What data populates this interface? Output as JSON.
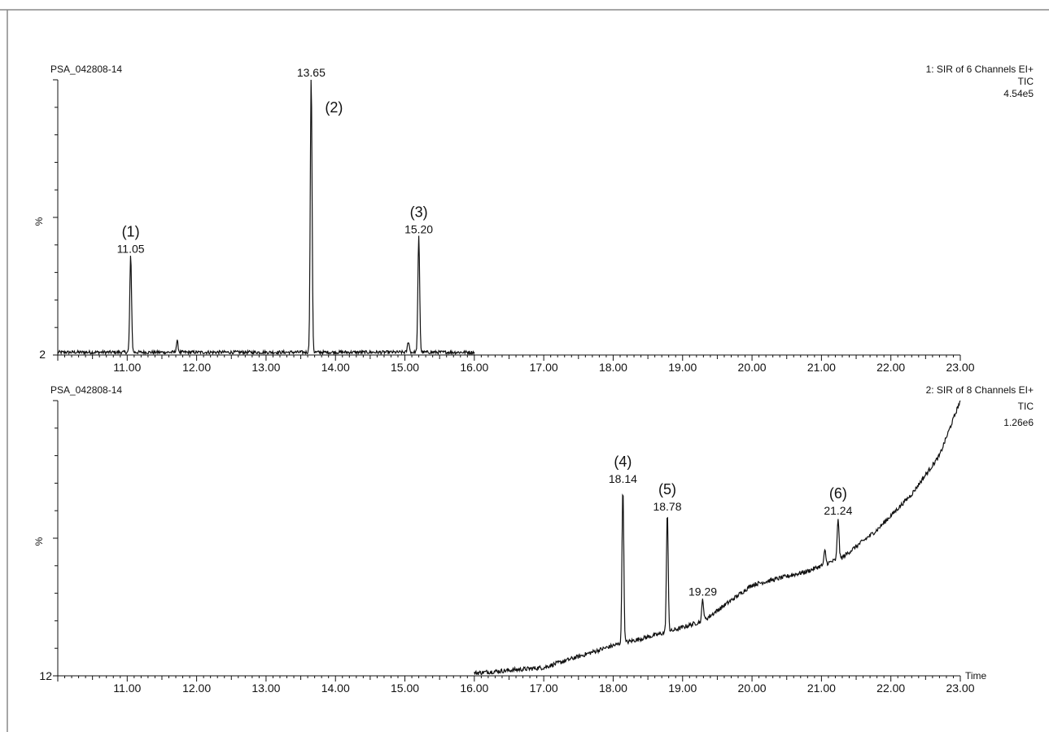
{
  "chart_data": [
    {
      "type": "line",
      "sample_id": "PSA_042808-14",
      "info": [
        "1: SIR of 6 Channels EI+",
        "TIC",
        "4.54e5"
      ],
      "ylabel": "%",
      "ymin_label": "2",
      "xlim": [
        10.0,
        23.0
      ],
      "ylim": [
        0,
        100
      ],
      "x_ticks": [
        "11.00",
        "12.00",
        "13.00",
        "14.00",
        "15.00",
        "16.00",
        "17.00",
        "18.00",
        "19.00",
        "20.00",
        "21.00",
        "22.00",
        "23.00"
      ],
      "xlabel": "",
      "trace_x_range": [
        10.0,
        16.0
      ],
      "baseline": 1.0,
      "noise": 0.6,
      "peaks": [
        {
          "x": 11.05,
          "y": 35,
          "label": "11.05",
          "id": "(1)"
        },
        {
          "x": 11.72,
          "y": 4,
          "label": "",
          "id": ""
        },
        {
          "x": 13.65,
          "y": 100,
          "label": "13.65",
          "id": "(2)"
        },
        {
          "x": 15.05,
          "y": 4,
          "label": "",
          "id": ""
        },
        {
          "x": 15.2,
          "y": 42,
          "label": "15.20",
          "id": "(3)"
        }
      ]
    },
    {
      "type": "line",
      "sample_id": "PSA_042808-14",
      "info": [
        "2: SIR of 8 Channels EI+",
        "TIC",
        "1.26e6"
      ],
      "ylabel": "%",
      "ymin_label": "12",
      "xlim": [
        10.0,
        23.0
      ],
      "ylim": [
        0,
        100
      ],
      "x_ticks": [
        "11.00",
        "12.00",
        "13.00",
        "14.00",
        "15.00",
        "16.00",
        "17.00",
        "18.00",
        "19.00",
        "20.00",
        "21.00",
        "22.00",
        "23.00"
      ],
      "xlabel": "Time",
      "trace_x_range": [
        16.0,
        23.0
      ],
      "baseline_points": [
        [
          16.0,
          1
        ],
        [
          17.0,
          3
        ],
        [
          18.0,
          11
        ],
        [
          18.8,
          16
        ],
        [
          19.3,
          20
        ],
        [
          20.0,
          33
        ],
        [
          20.8,
          38
        ],
        [
          21.3,
          43
        ],
        [
          21.8,
          53
        ],
        [
          22.3,
          66
        ],
        [
          22.7,
          80
        ],
        [
          23.0,
          100
        ]
      ],
      "noise": 0.8,
      "peaks": [
        {
          "x": 18.14,
          "y": 57,
          "label": "18.14",
          "id": "(4)"
        },
        {
          "x": 18.78,
          "y": 43,
          "label": "18.78",
          "id": "(5)"
        },
        {
          "x": 19.29,
          "y": 8,
          "label": "19.29",
          "id": ""
        },
        {
          "x": 21.05,
          "y": 5,
          "label": "",
          "id": ""
        },
        {
          "x": 21.24,
          "y": 15,
          "label": "21.24",
          "id": "(6)"
        }
      ]
    }
  ]
}
